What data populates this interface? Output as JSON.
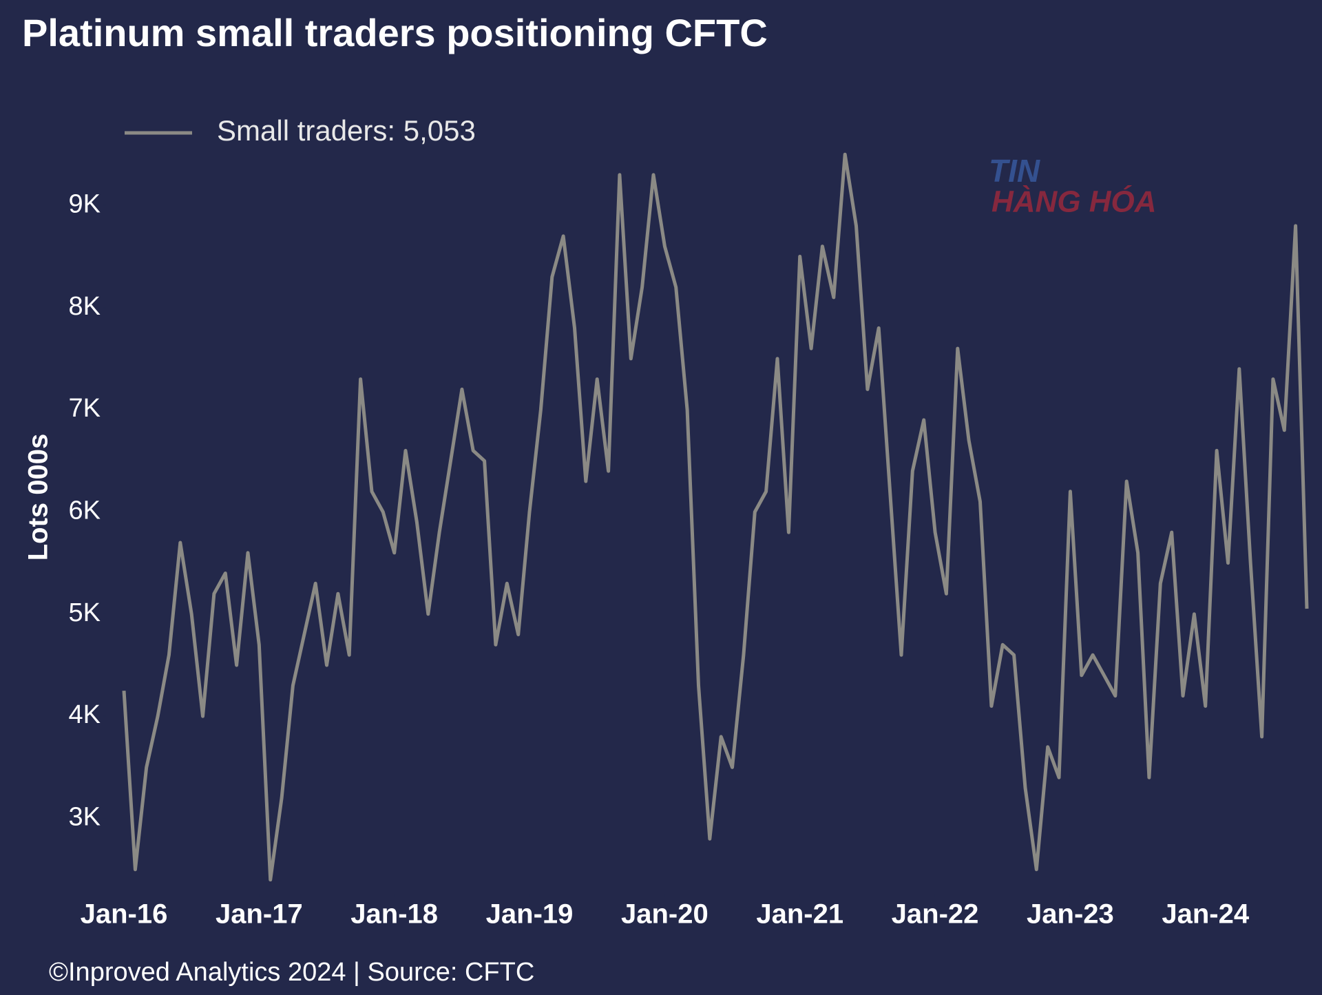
{
  "chart_data": {
    "type": "line",
    "title": "Platinum small traders positioning CFTC",
    "y_label": "Lots 000s",
    "footer": "©Inproved Analytics 2024 | Source: CFTC",
    "watermark": [
      "TIN",
      "HÀNG HÓA"
    ],
    "x": [
      "2016-01",
      "2016-02",
      "2016-03",
      "2016-04",
      "2016-05",
      "2016-06",
      "2016-07",
      "2016-08",
      "2016-09",
      "2016-10",
      "2016-11",
      "2016-12",
      "2017-01",
      "2017-02",
      "2017-03",
      "2017-04",
      "2017-05",
      "2017-06",
      "2017-07",
      "2017-08",
      "2017-09",
      "2017-10",
      "2017-11",
      "2017-12",
      "2018-01",
      "2018-02",
      "2018-03",
      "2018-04",
      "2018-05",
      "2018-06",
      "2018-07",
      "2018-08",
      "2018-09",
      "2018-10",
      "2018-11",
      "2018-12",
      "2019-01",
      "2019-02",
      "2019-03",
      "2019-04",
      "2019-05",
      "2019-06",
      "2019-07",
      "2019-08",
      "2019-09",
      "2019-10",
      "2019-11",
      "2019-12",
      "2020-01",
      "2020-02",
      "2020-03",
      "2020-04",
      "2020-05",
      "2020-06",
      "2020-07",
      "2020-08",
      "2020-09",
      "2020-10",
      "2020-11",
      "2020-12",
      "2021-01",
      "2021-02",
      "2021-03",
      "2021-04",
      "2021-05",
      "2021-06",
      "2021-07",
      "2021-08",
      "2021-09",
      "2021-10",
      "2021-11",
      "2021-12",
      "2022-01",
      "2022-02",
      "2022-03",
      "2022-04",
      "2022-05",
      "2022-06",
      "2022-07",
      "2022-08",
      "2022-09",
      "2022-10",
      "2022-11",
      "2022-12",
      "2023-01",
      "2023-02",
      "2023-03",
      "2023-04",
      "2023-05",
      "2023-06",
      "2023-07",
      "2023-08",
      "2023-09",
      "2023-10",
      "2023-11",
      "2023-12",
      "2024-01",
      "2024-02",
      "2024-03",
      "2024-04",
      "2024-05",
      "2024-06",
      "2024-07",
      "2024-08",
      "2024-09",
      "2024-10"
    ],
    "series": [
      {
        "name": "Small traders: 5,053",
        "color": "#8b8a85",
        "values": [
          4.25,
          2.5,
          3.5,
          4.0,
          4.6,
          5.7,
          5.0,
          4.0,
          5.2,
          5.4,
          4.5,
          5.6,
          4.7,
          2.4,
          3.2,
          4.3,
          4.8,
          5.3,
          4.5,
          5.2,
          4.6,
          7.3,
          6.2,
          6.0,
          5.6,
          6.6,
          5.9,
          5.0,
          5.8,
          6.5,
          7.2,
          6.6,
          6.5,
          4.7,
          5.3,
          4.8,
          6.0,
          7.0,
          8.3,
          8.7,
          7.8,
          6.3,
          7.3,
          6.4,
          9.3,
          7.5,
          8.2,
          9.3,
          8.6,
          8.2,
          7.0,
          4.3,
          2.8,
          3.8,
          3.5,
          4.6,
          6.0,
          6.2,
          7.5,
          5.8,
          8.5,
          7.6,
          8.6,
          8.1,
          9.5,
          8.8,
          7.2,
          7.8,
          6.2,
          4.6,
          6.4,
          6.9,
          5.8,
          5.2,
          7.6,
          6.7,
          6.1,
          4.1,
          4.7,
          4.6,
          3.3,
          2.5,
          3.7,
          3.4,
          6.2,
          4.4,
          4.6,
          4.4,
          4.2,
          6.3,
          5.6,
          3.4,
          5.3,
          5.8,
          4.2,
          5.0,
          4.1,
          6.6,
          5.5,
          7.4,
          5.5,
          3.8,
          7.3,
          6.8,
          8.8,
          5.053
        ]
      }
    ],
    "xlim": [
      "2016-01",
      "2024-10"
    ],
    "xticks": [
      {
        "value": "2016-01",
        "label": "Jan-16"
      },
      {
        "value": "2017-01",
        "label": "Jan-17"
      },
      {
        "value": "2018-01",
        "label": "Jan-18"
      },
      {
        "value": "2019-01",
        "label": "Jan-19"
      },
      {
        "value": "2020-01",
        "label": "Jan-20"
      },
      {
        "value": "2021-01",
        "label": "Jan-21"
      },
      {
        "value": "2022-01",
        "label": "Jan-22"
      },
      {
        "value": "2023-01",
        "label": "Jan-23"
      },
      {
        "value": "2024-01",
        "label": "Jan-24"
      }
    ],
    "ylim": [
      2.35,
      10
    ],
    "yticks": [
      {
        "value": 3,
        "label": "3K"
      },
      {
        "value": 4,
        "label": "4K"
      },
      {
        "value": 5,
        "label": "5K"
      },
      {
        "value": 6,
        "label": "6K"
      },
      {
        "value": 7,
        "label": "7K"
      },
      {
        "value": 8,
        "label": "8K"
      },
      {
        "value": 9,
        "label": "9K"
      }
    ],
    "grid": false
  }
}
